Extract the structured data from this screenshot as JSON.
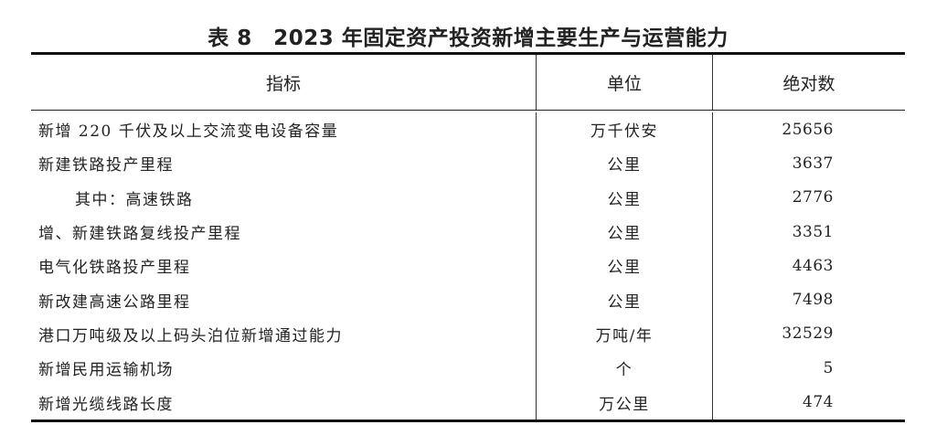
{
  "title": "表 8　2023 年固定资产投资新增主要生产与运营能力",
  "columns": [
    "指标",
    "单位",
    "绝对数"
  ],
  "rows": [
    {
      "indicator": "新增 220 千伏及以上交流变电设备容量",
      "unit": "万千伏安",
      "value": "25656",
      "indent": false
    },
    {
      "indicator": "新建铁路投产里程",
      "unit": "公里",
      "value": "3637",
      "indent": false
    },
    {
      "indicator": "其中：高速铁路",
      "unit": "公里",
      "value": "2776",
      "indent": true
    },
    {
      "indicator": "增、新建铁路复线投产里程",
      "unit": "公里",
      "value": "3351",
      "indent": false
    },
    {
      "indicator": "电气化铁路投产里程",
      "unit": "公里",
      "value": "4463",
      "indent": false
    },
    {
      "indicator": "新改建高速公路里程",
      "unit": "公里",
      "value": "7498",
      "indent": false
    },
    {
      "indicator": "港口万吨级及以上码头泊位新增通过能力",
      "unit": "万吨/年",
      "value": "32529",
      "indent": false
    },
    {
      "indicator": "新增民用运输机场",
      "unit": "个",
      "value": "5",
      "indent": false
    },
    {
      "indicator": "新增光缆线路长度",
      "unit": "万公里",
      "value": "474",
      "indent": false
    }
  ]
}
